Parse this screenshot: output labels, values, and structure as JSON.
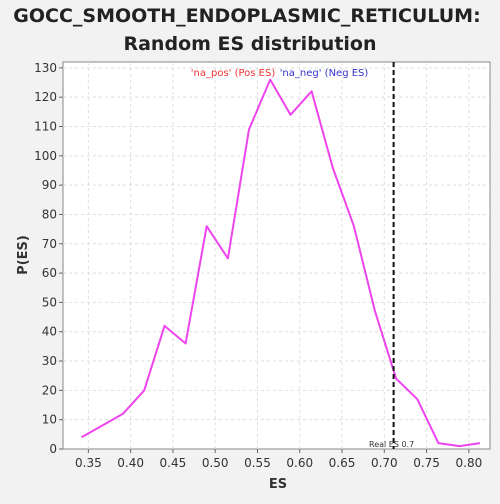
{
  "chart_data": {
    "type": "line",
    "title_line1": "GOCC_SMOOTH_ENDOPLASMIC_RETICULUM:",
    "title_line2": "Random ES distribution",
    "xlabel": "ES",
    "ylabel": "P(ES)",
    "xlim": [
      0.32,
      0.825
    ],
    "ylim": [
      0,
      132
    ],
    "x_ticks": [
      "0.35",
      "0.40",
      "0.45",
      "0.50",
      "0.55",
      "0.60",
      "0.65",
      "0.70",
      "0.75",
      "0.80"
    ],
    "y_ticks": [
      "0",
      "10",
      "20",
      "30",
      "40",
      "50",
      "60",
      "70",
      "80",
      "90",
      "100",
      "110",
      "120",
      "130"
    ],
    "grid": true,
    "series": [
      {
        "color": "#ee44ee",
        "x": [
          0.342,
          0.391,
          0.416,
          0.44,
          0.465,
          0.49,
          0.515,
          0.54,
          0.565,
          0.589,
          0.614,
          0.639,
          0.664,
          0.689,
          0.714,
          0.739,
          0.764,
          0.789,
          0.813
        ],
        "y": [
          4,
          12,
          20,
          42,
          36,
          76,
          65,
          109,
          126,
          114,
          122,
          96,
          76,
          47,
          24,
          17,
          2,
          1,
          2
        ]
      }
    ],
    "real_es": {
      "x": 0.711,
      "label": "Real ES 0.7"
    },
    "annotations": {
      "pos_label": "'na_pos' (Pos ES)",
      "neg_label": "'na_neg' (Neg ES)",
      "pos_color": "#ee3333",
      "neg_color": "#3333cc"
    }
  }
}
